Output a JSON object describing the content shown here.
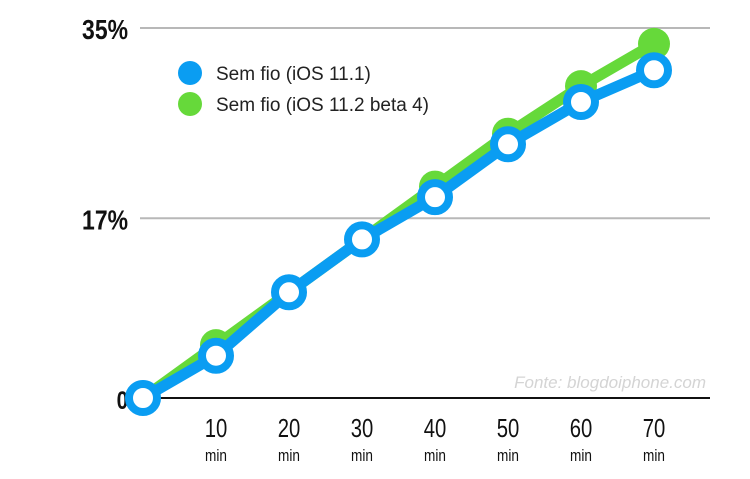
{
  "chart_data": {
    "type": "line",
    "categories": [
      "0",
      "10",
      "20",
      "30",
      "40",
      "50",
      "60",
      "70"
    ],
    "x_tick_labels": [
      "10",
      "20",
      "30",
      "40",
      "50",
      "60",
      "70"
    ],
    "x_unit": "min",
    "y_tick_labels": [
      "0",
      "17%",
      "35%"
    ],
    "ylim": [
      0,
      35
    ],
    "grid": "horizontal",
    "legend_position": "top-left",
    "source": "Fonte: blogdoiphone.com",
    "series": [
      {
        "name": "Sem fio (iOS 11.2 beta 4)",
        "color": "#66d93a",
        "values": [
          0,
          5,
          10,
          15,
          20,
          25,
          29.5,
          33.5
        ]
      },
      {
        "name": "Sem fio (iOS 11.1)",
        "color": "#0a9df2",
        "values": [
          0,
          4,
          10,
          15,
          19,
          24,
          28,
          31
        ]
      }
    ]
  }
}
